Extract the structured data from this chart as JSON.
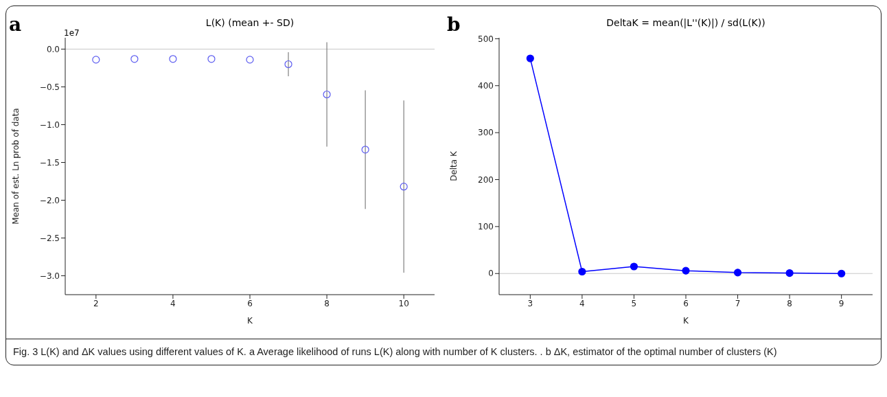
{
  "chart_data": [
    {
      "type": "scatter",
      "title": "L(K) (mean +- SD)",
      "xlabel": "K",
      "ylabel": "Mean of est. Ln prob of data",
      "annotations": [
        "a",
        "1e7"
      ],
      "x": [
        2,
        3,
        4,
        5,
        6,
        7,
        8,
        9,
        10
      ],
      "series": [
        {
          "color": "#5b5bf0",
          "values": [
            -0.14,
            -0.13,
            -0.13,
            -0.13,
            -0.14,
            -0.2,
            -0.6,
            -1.33,
            -1.82
          ],
          "errors": [
            null,
            null,
            null,
            null,
            null,
            0.16,
            0.69,
            0.785,
            1.14
          ]
        }
      ],
      "xlim": [
        1.2,
        10.8
      ],
      "xticks": [
        2,
        4,
        6,
        8,
        10
      ],
      "ylim": [
        -3.25,
        0.15
      ],
      "yticks": [
        {
          "value": 0,
          "label": "0.0"
        },
        {
          "value": -0.5,
          "label": "−0.5"
        },
        {
          "value": -1,
          "label": "−1.0"
        },
        {
          "value": -1.5,
          "label": "−1.5"
        },
        {
          "value": -2,
          "label": "−2.0"
        },
        {
          "value": -2.5,
          "label": "−2.5"
        },
        {
          "value": -3,
          "label": "−3.0"
        }
      ],
      "ref_lines": [
        {
          "axis": "y",
          "value": 0,
          "color": "#c8c8c8"
        }
      ],
      "marker": "circle",
      "grid": false,
      "legend": false
    },
    {
      "type": "line",
      "title": "DeltaK = mean(|L''(K)|) / sd(L(K))",
      "xlabel": "K",
      "ylabel": "Delta K",
      "annotations": [
        "b",
        "Fig. 3 L(K) and ΔK values using different values of K. a Average likelihood of runs L(K) along with number of K clusters. . b ΔK, estimator of the optimal number of clusters (K)"
      ],
      "x": [
        3,
        4,
        5,
        6,
        7,
        8,
        9
      ],
      "series": [
        {
          "color": "#0000ff",
          "values": [
            458,
            4,
            15,
            6,
            2,
            1,
            0
          ]
        }
      ],
      "xlim": [
        2.4,
        9.6
      ],
      "xticks": [
        3,
        4,
        5,
        6,
        7,
        8,
        9
      ],
      "ylim": [
        -45,
        502
      ],
      "yticks": [
        0,
        100,
        200,
        300,
        400,
        500
      ],
      "ref_lines": [
        {
          "axis": "y",
          "value": 0,
          "color": "#c8c8c8"
        }
      ],
      "marker": "circle",
      "line_style": "solid",
      "grid": false,
      "legend": false
    }
  ]
}
